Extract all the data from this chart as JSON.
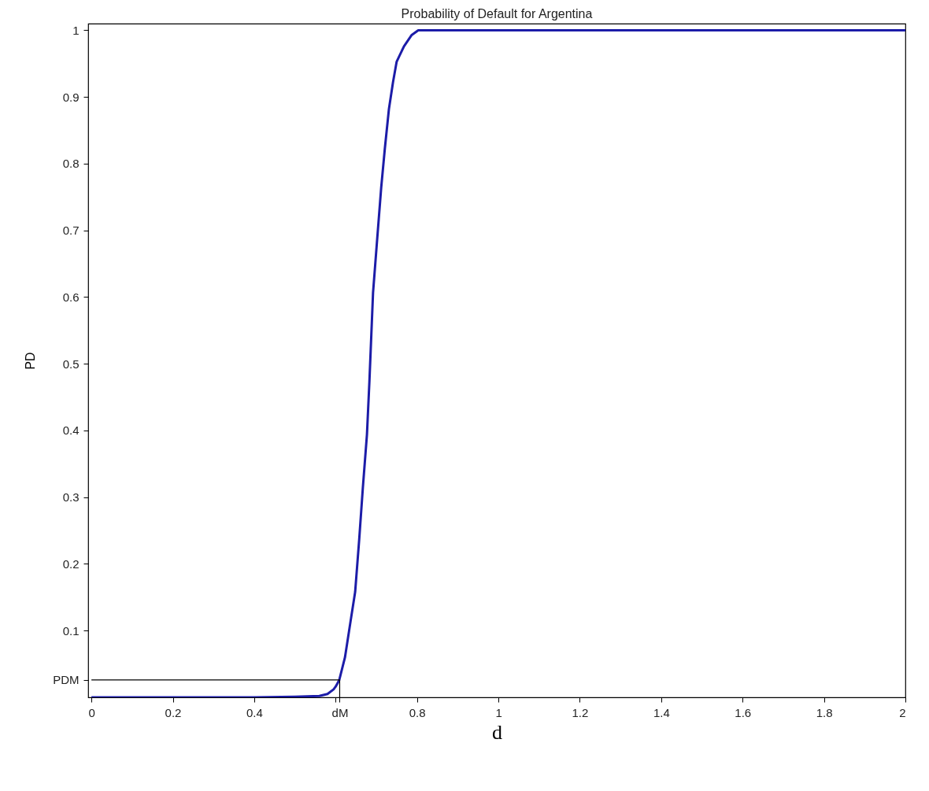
{
  "chart_data": {
    "type": "line",
    "title": "Probability of Default for Argentina",
    "xlabel": "d",
    "ylabel": "PD",
    "xlim": [
      -0.008,
      2
    ],
    "ylim": [
      0,
      1.01
    ],
    "xticks": [
      0,
      0.2,
      0.4,
      {
        "value": 0.6,
        "label": null
      },
      {
        "value": 0.61,
        "label": "dM"
      },
      0.8,
      1,
      1.2,
      1.4,
      1.6,
      1.8,
      2
    ],
    "yticks": [
      {
        "value": 0.026,
        "label": "PDM"
      },
      0.1,
      0.2,
      0.3,
      0.4,
      0.5,
      0.6,
      0.7,
      0.8,
      0.9,
      1
    ],
    "grid": false,
    "marker": "none",
    "line_style": "solid",
    "series": [
      {
        "color": "#1c1ca8",
        "x": [
          0,
          0.4,
          0.5,
          0.56,
          0.58,
          0.595,
          0.6,
          0.609,
          0.623,
          0.638,
          0.648,
          0.658,
          0.667,
          0.677,
          0.683,
          0.692,
          0.702,
          0.712,
          0.721,
          0.731,
          0.741,
          0.75,
          0.768,
          0.787,
          0.803,
          1,
          1.5,
          2
        ],
        "values": [
          0,
          0,
          0.001,
          0.002,
          0.005,
          0.012,
          0.016,
          0.026,
          0.06,
          0.119,
          0.158,
          0.237,
          0.315,
          0.394,
          0.473,
          0.607,
          0.686,
          0.764,
          0.823,
          0.882,
          0.922,
          0.953,
          0.976,
          0.993,
          1,
          1,
          1,
          1
        ]
      },
      {
        "color": "#000000",
        "x": [
          0,
          0.61,
          0.61
        ],
        "values": [
          0.026,
          0.026,
          0
        ]
      }
    ]
  }
}
